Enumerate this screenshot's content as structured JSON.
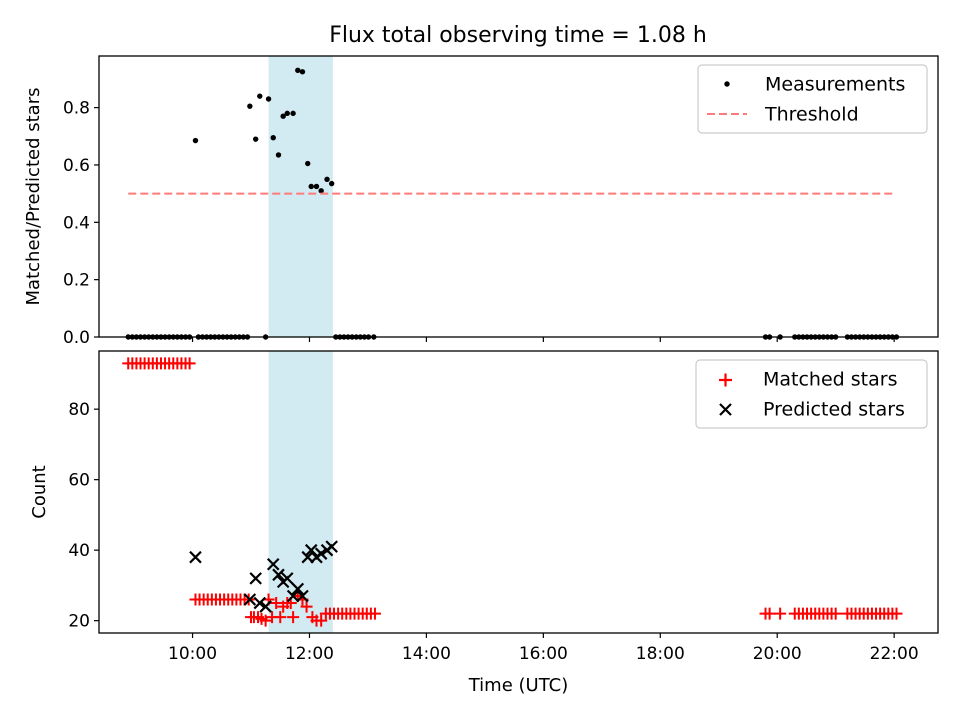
{
  "chart_data": [
    {
      "type": "scatter",
      "title": "Flux total observing time = 1.08 h",
      "xlabel": "",
      "ylabel": "Matched/Predicted stars",
      "xlim": [
        8.4,
        22.75
      ],
      "ylim": [
        0.0,
        0.98
      ],
      "yticks": [
        0.0,
        0.2,
        0.4,
        0.6,
        0.8
      ],
      "ytick_labels": [
        "0.0",
        "0.2",
        "0.4",
        "0.6",
        "0.8"
      ],
      "xticks": [
        10,
        12,
        14,
        16,
        18,
        20,
        22
      ],
      "xtick_labels_shown": false,
      "grid": false,
      "legend_position": "top-right",
      "shaded_interval": [
        11.3,
        12.4
      ],
      "shade_color": "#add8e6",
      "series": [
        {
          "name": "Measurements",
          "marker": "dot",
          "color": "#000000",
          "points": [
            [
              8.9,
              0
            ],
            [
              8.97,
              0
            ],
            [
              9.04,
              0
            ],
            [
              9.11,
              0
            ],
            [
              9.18,
              0
            ],
            [
              9.25,
              0
            ],
            [
              9.32,
              0
            ],
            [
              9.39,
              0
            ],
            [
              9.46,
              0
            ],
            [
              9.53,
              0
            ],
            [
              9.6,
              0
            ],
            [
              9.67,
              0
            ],
            [
              9.74,
              0
            ],
            [
              9.81,
              0
            ],
            [
              9.88,
              0
            ],
            [
              9.95,
              0
            ],
            [
              10.05,
              0.685
            ],
            [
              10.1,
              0
            ],
            [
              10.17,
              0
            ],
            [
              10.24,
              0
            ],
            [
              10.31,
              0
            ],
            [
              10.38,
              0
            ],
            [
              10.45,
              0
            ],
            [
              10.52,
              0
            ],
            [
              10.59,
              0
            ],
            [
              10.66,
              0
            ],
            [
              10.73,
              0
            ],
            [
              10.8,
              0
            ],
            [
              10.87,
              0
            ],
            [
              10.94,
              0
            ],
            [
              10.98,
              0.805
            ],
            [
              11.08,
              0.69
            ],
            [
              11.15,
              0.84
            ],
            [
              11.25,
              0
            ],
            [
              11.3,
              0.83
            ],
            [
              11.38,
              0.695
            ],
            [
              11.47,
              0.635
            ],
            [
              11.55,
              0.77
            ],
            [
              11.62,
              0.78
            ],
            [
              11.72,
              0.78
            ],
            [
              11.8,
              0.93
            ],
            [
              11.88,
              0.925
            ],
            [
              11.97,
              0.605
            ],
            [
              12.03,
              0.525
            ],
            [
              12.12,
              0.525
            ],
            [
              12.2,
              0.51
            ],
            [
              12.3,
              0.55
            ],
            [
              12.38,
              0.535
            ],
            [
              12.45,
              0
            ],
            [
              12.52,
              0
            ],
            [
              12.59,
              0
            ],
            [
              12.66,
              0
            ],
            [
              12.73,
              0
            ],
            [
              12.8,
              0
            ],
            [
              12.87,
              0
            ],
            [
              12.94,
              0
            ],
            [
              13.01,
              0
            ],
            [
              13.1,
              0
            ],
            [
              19.8,
              0
            ],
            [
              19.87,
              0
            ],
            [
              20.05,
              0
            ],
            [
              20.3,
              0
            ],
            [
              20.37,
              0
            ],
            [
              20.44,
              0
            ],
            [
              20.51,
              0
            ],
            [
              20.58,
              0
            ],
            [
              20.65,
              0
            ],
            [
              20.72,
              0
            ],
            [
              20.79,
              0
            ],
            [
              20.86,
              0
            ],
            [
              20.93,
              0
            ],
            [
              21.0,
              0
            ],
            [
              21.2,
              0
            ],
            [
              21.27,
              0
            ],
            [
              21.34,
              0
            ],
            [
              21.41,
              0
            ],
            [
              21.48,
              0
            ],
            [
              21.55,
              0
            ],
            [
              21.62,
              0
            ],
            [
              21.69,
              0
            ],
            [
              21.76,
              0
            ],
            [
              21.83,
              0
            ],
            [
              21.9,
              0
            ],
            [
              21.97,
              0
            ],
            [
              22.04,
              0
            ]
          ]
        },
        {
          "name": "Threshold",
          "marker": "dashed-line",
          "color": "#ff7b7b",
          "points": [
            [
              8.9,
              0.5
            ],
            [
              22.0,
              0.5
            ]
          ]
        }
      ]
    },
    {
      "type": "scatter",
      "title": "",
      "xlabel": "Time (UTC)",
      "ylabel": "Count",
      "xlim": [
        8.4,
        22.75
      ],
      "ylim": [
        16.5,
        96.5
      ],
      "yticks": [
        20,
        40,
        60,
        80
      ],
      "ytick_labels": [
        "20",
        "40",
        "60",
        "80"
      ],
      "xticks": [
        10,
        12,
        14,
        16,
        18,
        20,
        22
      ],
      "xtick_labels": [
        "10:00",
        "12:00",
        "14:00",
        "16:00",
        "18:00",
        "20:00",
        "22:00"
      ],
      "grid": false,
      "legend_position": "top-right",
      "shaded_interval": [
        11.3,
        12.4
      ],
      "shade_color": "#add8e6",
      "series": [
        {
          "name": "Matched stars",
          "marker": "plus",
          "color": "#ff0000",
          "points": [
            [
              8.9,
              93
            ],
            [
              8.97,
              93
            ],
            [
              9.04,
              93
            ],
            [
              9.11,
              93
            ],
            [
              9.18,
              93
            ],
            [
              9.25,
              93
            ],
            [
              9.32,
              93
            ],
            [
              9.39,
              93
            ],
            [
              9.46,
              93
            ],
            [
              9.53,
              93
            ],
            [
              9.6,
              93
            ],
            [
              9.67,
              93
            ],
            [
              9.74,
              93
            ],
            [
              9.81,
              93
            ],
            [
              9.88,
              93
            ],
            [
              9.95,
              93
            ],
            [
              10.05,
              26
            ],
            [
              10.12,
              26
            ],
            [
              10.19,
              26
            ],
            [
              10.26,
              26
            ],
            [
              10.33,
              26
            ],
            [
              10.4,
              26
            ],
            [
              10.47,
              26
            ],
            [
              10.54,
              26
            ],
            [
              10.61,
              26
            ],
            [
              10.68,
              26
            ],
            [
              10.75,
              26
            ],
            [
              10.82,
              26
            ],
            [
              10.89,
              26
            ],
            [
              10.96,
              26
            ],
            [
              11.0,
              21
            ],
            [
              11.05,
              21
            ],
            [
              11.12,
              21
            ],
            [
              11.18,
              20.5
            ],
            [
              11.25,
              20
            ],
            [
              11.3,
              26
            ],
            [
              11.36,
              21
            ],
            [
              11.43,
              25
            ],
            [
              11.5,
              21
            ],
            [
              11.55,
              24
            ],
            [
              11.62,
              25
            ],
            [
              11.68,
              25
            ],
            [
              11.72,
              21
            ],
            [
              11.8,
              27
            ],
            [
              11.88,
              26
            ],
            [
              11.95,
              24
            ],
            [
              12.05,
              21
            ],
            [
              12.12,
              20
            ],
            [
              12.2,
              20
            ],
            [
              12.28,
              22
            ],
            [
              12.35,
              22
            ],
            [
              12.42,
              22
            ],
            [
              12.49,
              22
            ],
            [
              12.56,
              22
            ],
            [
              12.63,
              22
            ],
            [
              12.7,
              22
            ],
            [
              12.77,
              22
            ],
            [
              12.84,
              22
            ],
            [
              12.91,
              22
            ],
            [
              12.98,
              22
            ],
            [
              13.05,
              22
            ],
            [
              13.12,
              22
            ],
            [
              19.8,
              22
            ],
            [
              19.87,
              22
            ],
            [
              20.05,
              22
            ],
            [
              20.3,
              22
            ],
            [
              20.37,
              22
            ],
            [
              20.44,
              22
            ],
            [
              20.51,
              22
            ],
            [
              20.58,
              22
            ],
            [
              20.65,
              22
            ],
            [
              20.72,
              22
            ],
            [
              20.79,
              22
            ],
            [
              20.86,
              22
            ],
            [
              20.93,
              22
            ],
            [
              21.0,
              22
            ],
            [
              21.2,
              22
            ],
            [
              21.27,
              22
            ],
            [
              21.34,
              22
            ],
            [
              21.41,
              22
            ],
            [
              21.48,
              22
            ],
            [
              21.55,
              22
            ],
            [
              21.62,
              22
            ],
            [
              21.69,
              22
            ],
            [
              21.76,
              22
            ],
            [
              21.83,
              22
            ],
            [
              21.9,
              22
            ],
            [
              21.97,
              22
            ],
            [
              22.04,
              22
            ]
          ]
        },
        {
          "name": "Predicted stars",
          "marker": "x",
          "color": "#000000",
          "points": [
            [
              10.05,
              38
            ],
            [
              10.98,
              26
            ],
            [
              11.08,
              32
            ],
            [
              11.15,
              25
            ],
            [
              11.25,
              24
            ],
            [
              11.38,
              36
            ],
            [
              11.47,
              33
            ],
            [
              11.55,
              31
            ],
            [
              11.62,
              32
            ],
            [
              11.72,
              27
            ],
            [
              11.8,
              29
            ],
            [
              11.88,
              27
            ],
            [
              11.97,
              38
            ],
            [
              12.03,
              40
            ],
            [
              12.12,
              38
            ],
            [
              12.2,
              39
            ],
            [
              12.3,
              40
            ],
            [
              12.38,
              41
            ]
          ]
        }
      ]
    }
  ]
}
